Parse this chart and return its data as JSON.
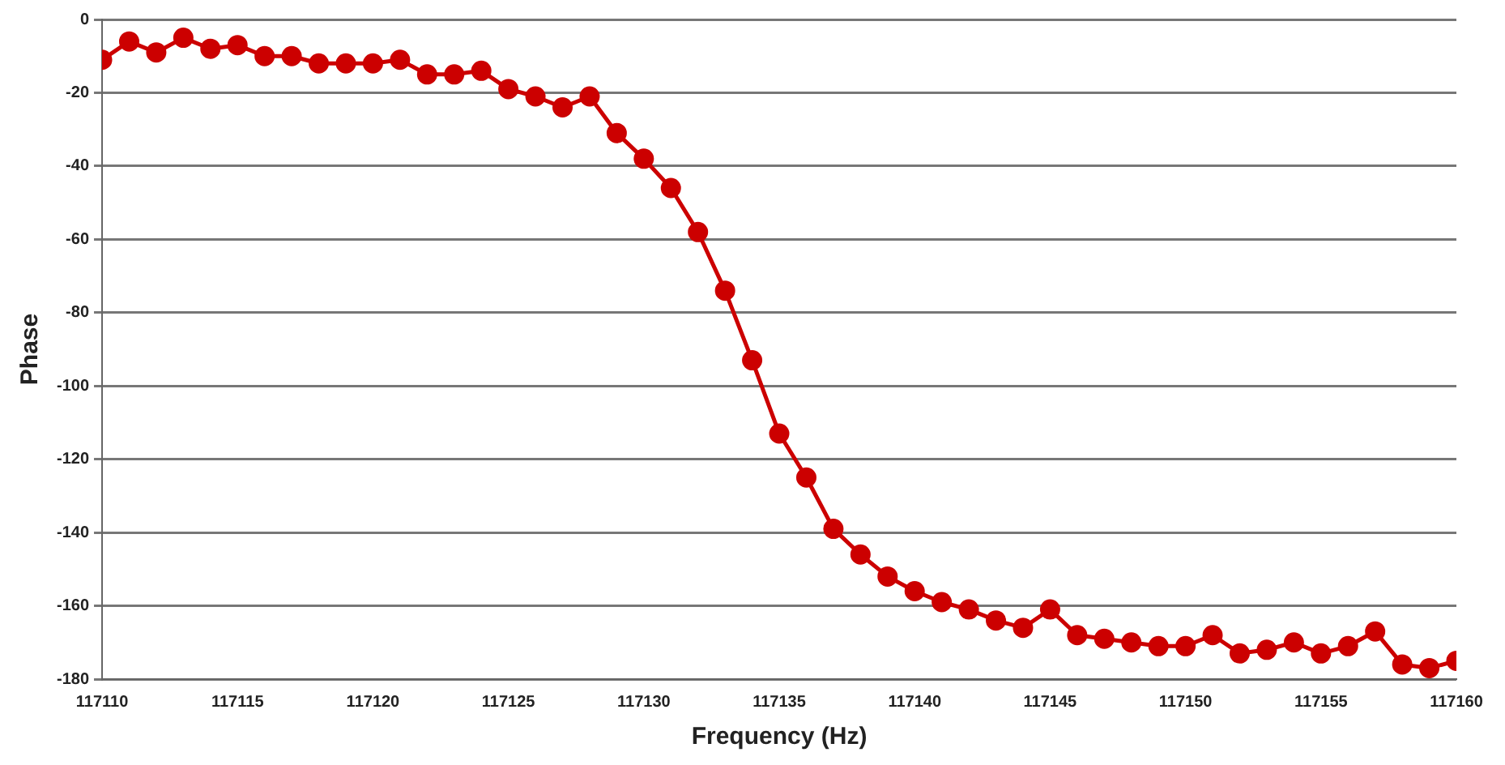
{
  "chart_data": {
    "type": "line",
    "xlabel": "Frequency (Hz)",
    "ylabel": "Phase",
    "x": [
      117110,
      117111,
      117112,
      117113,
      117114,
      117115,
      117116,
      117117,
      117118,
      117119,
      117120,
      117121,
      117122,
      117123,
      117124,
      117125,
      117126,
      117127,
      117128,
      117129,
      117130,
      117131,
      117132,
      117133,
      117134,
      117135,
      117136,
      117137,
      117138,
      117139,
      117140,
      117141,
      117142,
      117143,
      117144,
      117145,
      117146,
      117147,
      117148,
      117149,
      117150,
      117151,
      117152,
      117153,
      117154,
      117155,
      117156,
      117157,
      117158,
      117159,
      117160
    ],
    "series": [
      {
        "color": "#cc0000",
        "values": [
          -11,
          -6,
          -9,
          -5,
          -8,
          -7,
          -10,
          -10,
          -12,
          -12,
          -12,
          -11,
          -15,
          -15,
          -14,
          -19,
          -21,
          -24,
          -21,
          -31,
          -38,
          -46,
          -58,
          -74,
          -93,
          -113,
          -125,
          -139,
          -146,
          -152,
          -156,
          -159,
          -161,
          -164,
          -166,
          -161,
          -168,
          -169,
          -170,
          -171,
          -171,
          -168,
          -173,
          -172,
          -170,
          -173,
          -171,
          -167,
          -176,
          -177,
          -175
        ]
      }
    ],
    "xlim": [
      117110,
      117160
    ],
    "xticks": [
      117110,
      117115,
      117120,
      117125,
      117130,
      117135,
      117140,
      117145,
      117150,
      117155,
      117160
    ],
    "ylim": [
      -180,
      0
    ],
    "yticks": [
      -180,
      -160,
      -140,
      -120,
      -100,
      -80,
      -60,
      -40,
      -20,
      0
    ],
    "grid": "y",
    "legend": false,
    "marker": "circle",
    "line_style": "solid"
  }
}
